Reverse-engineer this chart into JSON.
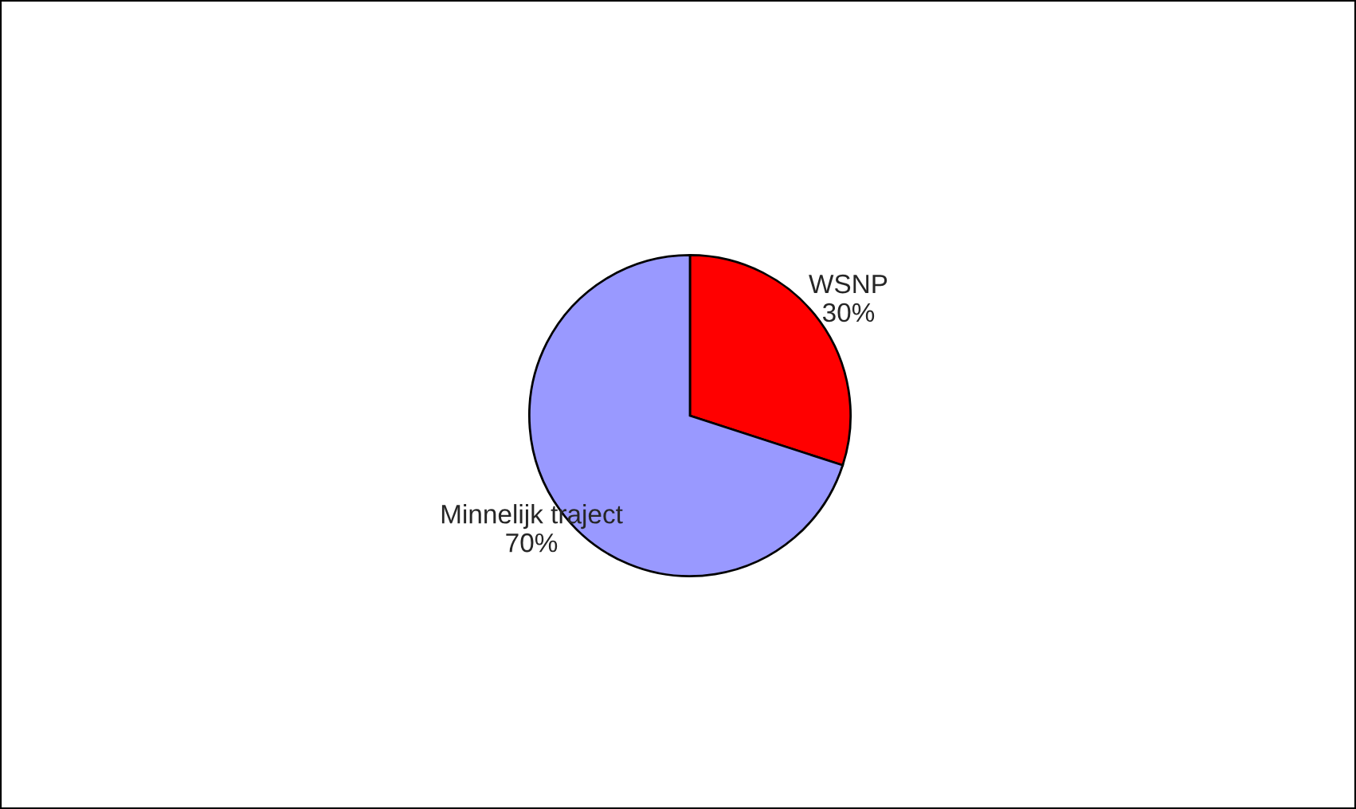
{
  "chart_data": {
    "type": "pie",
    "categories": [
      "WSNP",
      "Minnelijk traject"
    ],
    "values": [
      30,
      70
    ],
    "value_labels": [
      "30%",
      "70%"
    ],
    "colors": [
      "#ff0000",
      "#9999ff"
    ],
    "legend": false
  }
}
